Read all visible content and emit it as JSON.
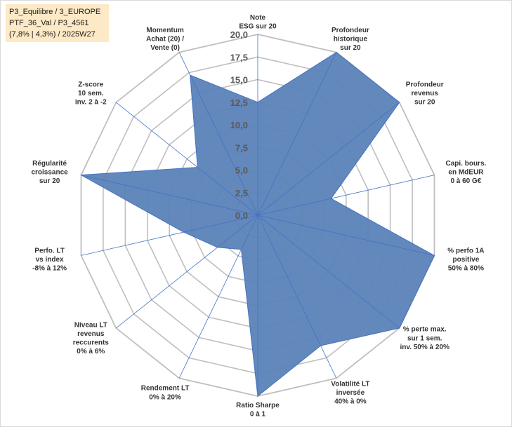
{
  "header": {
    "line1": "P3_Equilibre / 3_EUROPE",
    "line2": "PTF_36_Val / P3_4561",
    "line3": "(7,8% | 4,3%) / 2025W27"
  },
  "chart_data": {
    "type": "radar",
    "rmin": 0,
    "rmax": 20,
    "grid": true,
    "tick_labels": [
      "0,0",
      "2,5",
      "5,0",
      "7,5",
      "10,0",
      "12,5",
      "15,0",
      "17,5",
      "20,0"
    ],
    "axes": [
      {
        "lines": [
          "Note",
          "ESG sur 20"
        ],
        "value": 12.5
      },
      {
        "lines": [
          "Profondeur",
          "historique",
          "sur 20"
        ],
        "value": 20
      },
      {
        "lines": [
          "Profondeur",
          "revenus",
          "sur 20"
        ],
        "value": 20
      },
      {
        "lines": [
          "Capi. bours.",
          "en MdEUR",
          "0 à 60 G€"
        ],
        "value": 8.3
      },
      {
        "lines": [
          "% perfo 1A",
          "positive",
          "50% à 80%"
        ],
        "value": 20
      },
      {
        "lines": [
          "% perte max.",
          "sur 1 sem.",
          "inv. 50% à 20%"
        ],
        "value": 20
      },
      {
        "lines": [
          "Volatilité LT",
          "inversée",
          "40% à 0%"
        ],
        "value": 16
      },
      {
        "lines": [
          "Ratio Sharpe",
          "0 à 1"
        ],
        "value": 20
      },
      {
        "lines": [
          "Rendement LT",
          "0% à 20%"
        ],
        "value": 4.2
      },
      {
        "lines": [
          "Niveau LT",
          "revenus",
          "reccurents",
          "0% à 6%"
        ],
        "value": 5.7
      },
      {
        "lines": [
          "Perfo. LT",
          "vs index",
          "-8% à 12%"
        ],
        "value": 8.4
      },
      {
        "lines": [
          "Régularité",
          "croissance",
          "sur 20"
        ],
        "value": 20
      },
      {
        "lines": [
          "Z-score",
          "10 sem.",
          "inv. 2 à -2"
        ],
        "value": 8.5
      },
      {
        "lines": [
          "Momentum",
          "Achat (20) /",
          "Vente (0)"
        ],
        "value": 17.2
      }
    ],
    "series": [
      {
        "color": "#5b82b8",
        "stroke": "#4572c4"
      }
    ],
    "grid_color": "#bfbfbf"
  }
}
